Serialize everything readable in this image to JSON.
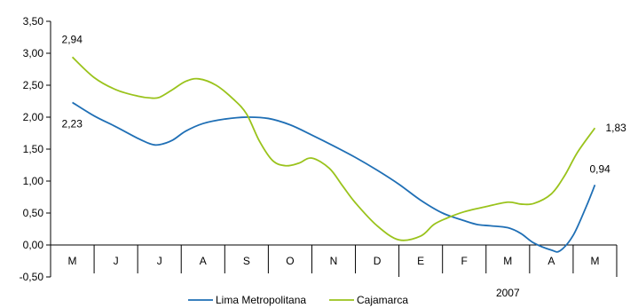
{
  "chart_data": {
    "type": "line",
    "categories": [
      "M",
      "J",
      "J",
      "A",
      "S",
      "O",
      "N",
      "D",
      "E",
      "F",
      "M",
      "A",
      "M"
    ],
    "year_label": "2007",
    "year_starts_at_category": 8,
    "ylim": [
      -0.5,
      3.5
    ],
    "yticks": [
      "3,50",
      "3,00",
      "2,50",
      "2,00",
      "1,50",
      "1,00",
      "0,50",
      "0,00",
      "-0,50"
    ],
    "grid": false,
    "legend_position": "bottom",
    "series": [
      {
        "name": "Lima Metropolitana",
        "color": "#1f6fb5",
        "x": [
          0,
          0.5,
          1,
          1.5,
          1.8,
          2,
          2.3,
          2.6,
          3,
          3.5,
          4,
          4.5,
          5,
          5.5,
          6,
          6.5,
          7,
          7.5,
          8,
          8.5,
          9,
          9.3,
          9.6,
          10,
          10.3,
          10.6,
          11,
          11.2,
          11.5,
          11.8,
          12
        ],
        "values": [
          2.23,
          2.02,
          1.85,
          1.67,
          1.58,
          1.57,
          1.64,
          1.78,
          1.9,
          1.97,
          2.0,
          1.98,
          1.88,
          1.72,
          1.55,
          1.37,
          1.17,
          0.95,
          0.7,
          0.5,
          0.38,
          0.32,
          0.3,
          0.27,
          0.18,
          0.03,
          -0.08,
          -0.09,
          0.15,
          0.6,
          0.94
        ]
      },
      {
        "name": "Cajamarca",
        "color": "#9ac31c",
        "x": [
          0,
          0.5,
          1,
          1.5,
          1.8,
          2,
          2.3,
          2.6,
          2.9,
          3.3,
          3.7,
          4,
          4.3,
          4.6,
          4.9,
          5.2,
          5.5,
          5.9,
          6.2,
          6.5,
          7,
          7.5,
          8,
          8.3,
          8.6,
          9,
          9.5,
          10,
          10.3,
          10.6,
          11,
          11.3,
          11.6,
          12
        ],
        "values": [
          2.94,
          2.62,
          2.43,
          2.33,
          2.3,
          2.31,
          2.43,
          2.56,
          2.6,
          2.5,
          2.28,
          2.05,
          1.62,
          1.32,
          1.24,
          1.28,
          1.36,
          1.2,
          0.93,
          0.66,
          0.3,
          0.08,
          0.14,
          0.32,
          0.42,
          0.52,
          0.6,
          0.67,
          0.64,
          0.65,
          0.8,
          1.08,
          1.45,
          1.83
        ]
      }
    ],
    "data_labels": [
      {
        "series": 1,
        "text": "2,94",
        "at": "start"
      },
      {
        "series": 0,
        "text": "2,23",
        "at": "start"
      },
      {
        "series": 1,
        "text": "1,83",
        "at": "end"
      },
      {
        "series": 0,
        "text": "0,94",
        "at": "end"
      }
    ]
  }
}
